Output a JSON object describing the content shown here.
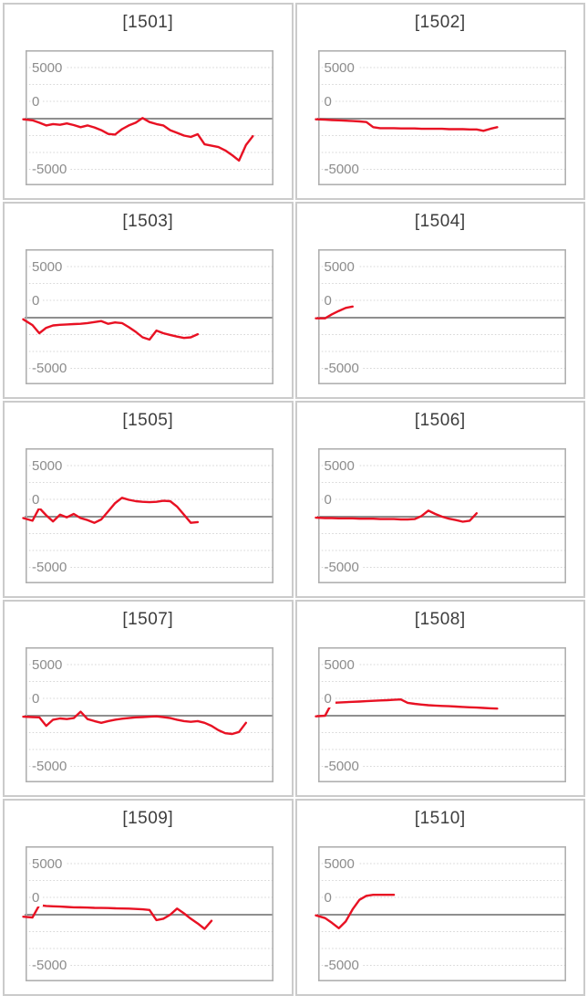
{
  "style": {
    "series_color": "#e81123",
    "zero_line_color": "#8f8f8f",
    "gridline_color": "#d7d7d7",
    "frame_border_color": "#b0b0b0",
    "cell_border_color": "#cbcbcb",
    "title_color": "#3d3d3d",
    "tick_label_color": "#8c8c8c",
    "background": "#ffffff"
  },
  "axis": {
    "tick_labels": [
      "5000",
      "0",
      "-5000"
    ],
    "tick_values": [
      5000,
      0,
      -5000
    ],
    "ylim": [
      -10000,
      10000
    ],
    "gridline_interval": 2500,
    "gridline_style": "dotted",
    "zero_line_style": "solid",
    "x_slots": 37,
    "legend": "none"
  },
  "chart_data": [
    {
      "type": "line",
      "title": "[1501]",
      "values": [
        -100,
        -250,
        -600,
        -1000,
        -800,
        -900,
        -700,
        -950,
        -1250,
        -1000,
        -1300,
        -1700,
        -2250,
        -2350,
        -1550,
        -1000,
        -600,
        100,
        -500,
        -800,
        -1000,
        -1700,
        -2100,
        -2500,
        -2700,
        -2300,
        -3800,
        -4000,
        -4200,
        -4700,
        -5400,
        -6200,
        -3900,
        -2600
      ]
    },
    {
      "type": "line",
      "title": "[1502]",
      "values": [
        -100,
        -150,
        -200,
        -250,
        -300,
        -350,
        -400,
        -500,
        -1250,
        -1400,
        -1400,
        -1400,
        -1450,
        -1450,
        -1450,
        -1500,
        -1500,
        -1500,
        -1500,
        -1550,
        -1550,
        -1550,
        -1600,
        -1600,
        -1800,
        -1500,
        -1250
      ]
    },
    {
      "type": "line",
      "title": "[1503]",
      "values": [
        -250,
        -1100,
        -2300,
        -1500,
        -1150,
        -1050,
        -1000,
        -950,
        -900,
        -800,
        -650,
        -500,
        -900,
        -700,
        -800,
        -1400,
        -2100,
        -2900,
        -3250,
        -1900,
        -2300,
        -2550,
        -2800,
        -3000,
        -2900,
        -2450
      ]
    },
    {
      "type": "line",
      "title": "[1504]",
      "values": [
        -100,
        -100,
        500,
        1000,
        1450,
        1650
      ]
    },
    {
      "type": "line",
      "title": "[1505]",
      "values": [
        -200,
        -600,
        1300,
        200,
        -700,
        300,
        -100,
        400,
        -200,
        -500,
        -900,
        -400,
        800,
        2000,
        2800,
        2500,
        2300,
        2200,
        2150,
        2200,
        2350,
        2300,
        1500,
        300,
        -900,
        -800
      ]
    },
    {
      "type": "line",
      "title": "[1506]",
      "values": [
        -150,
        -200,
        -200,
        -250,
        -250,
        -250,
        -300,
        -300,
        -300,
        -350,
        -350,
        -350,
        -400,
        -400,
        -350,
        100,
        900,
        400,
        0,
        -300,
        -500,
        -750,
        -600,
        500
      ]
    },
    {
      "type": "line",
      "title": "[1507]",
      "values": [
        -150,
        -200,
        -250,
        -1500,
        -600,
        -400,
        -500,
        -350,
        600,
        -500,
        -800,
        -1050,
        -800,
        -600,
        -450,
        -350,
        -250,
        -200,
        -150,
        -100,
        -200,
        -350,
        -600,
        -800,
        -900,
        -800,
        -1050,
        -1500,
        -2150,
        -2600,
        -2700,
        -2400,
        -1050
      ]
    },
    {
      "type": "line",
      "title": "[1508]",
      "values": [
        -100,
        0,
        1900,
        1950,
        2000,
        2050,
        2100,
        2150,
        2200,
        2250,
        2300,
        2350,
        2400,
        1900,
        1750,
        1650,
        1550,
        1500,
        1450,
        1400,
        1350,
        1300,
        1250,
        1200,
        1150,
        1100,
        1050
      ]
    },
    {
      "type": "line",
      "title": "[1509]",
      "values": [
        -300,
        -400,
        1400,
        1300,
        1250,
        1200,
        1150,
        1100,
        1080,
        1050,
        1020,
        1000,
        980,
        950,
        920,
        900,
        850,
        800,
        700,
        -800,
        -600,
        0,
        900,
        200,
        -600,
        -1300,
        -2100,
        -900
      ]
    },
    {
      "type": "line",
      "title": "[1510]",
      "values": [
        -100,
        -500,
        -1200,
        -2000,
        -1000,
        800,
        2200,
        2800,
        2950,
        2950,
        2950,
        2950
      ]
    }
  ]
}
